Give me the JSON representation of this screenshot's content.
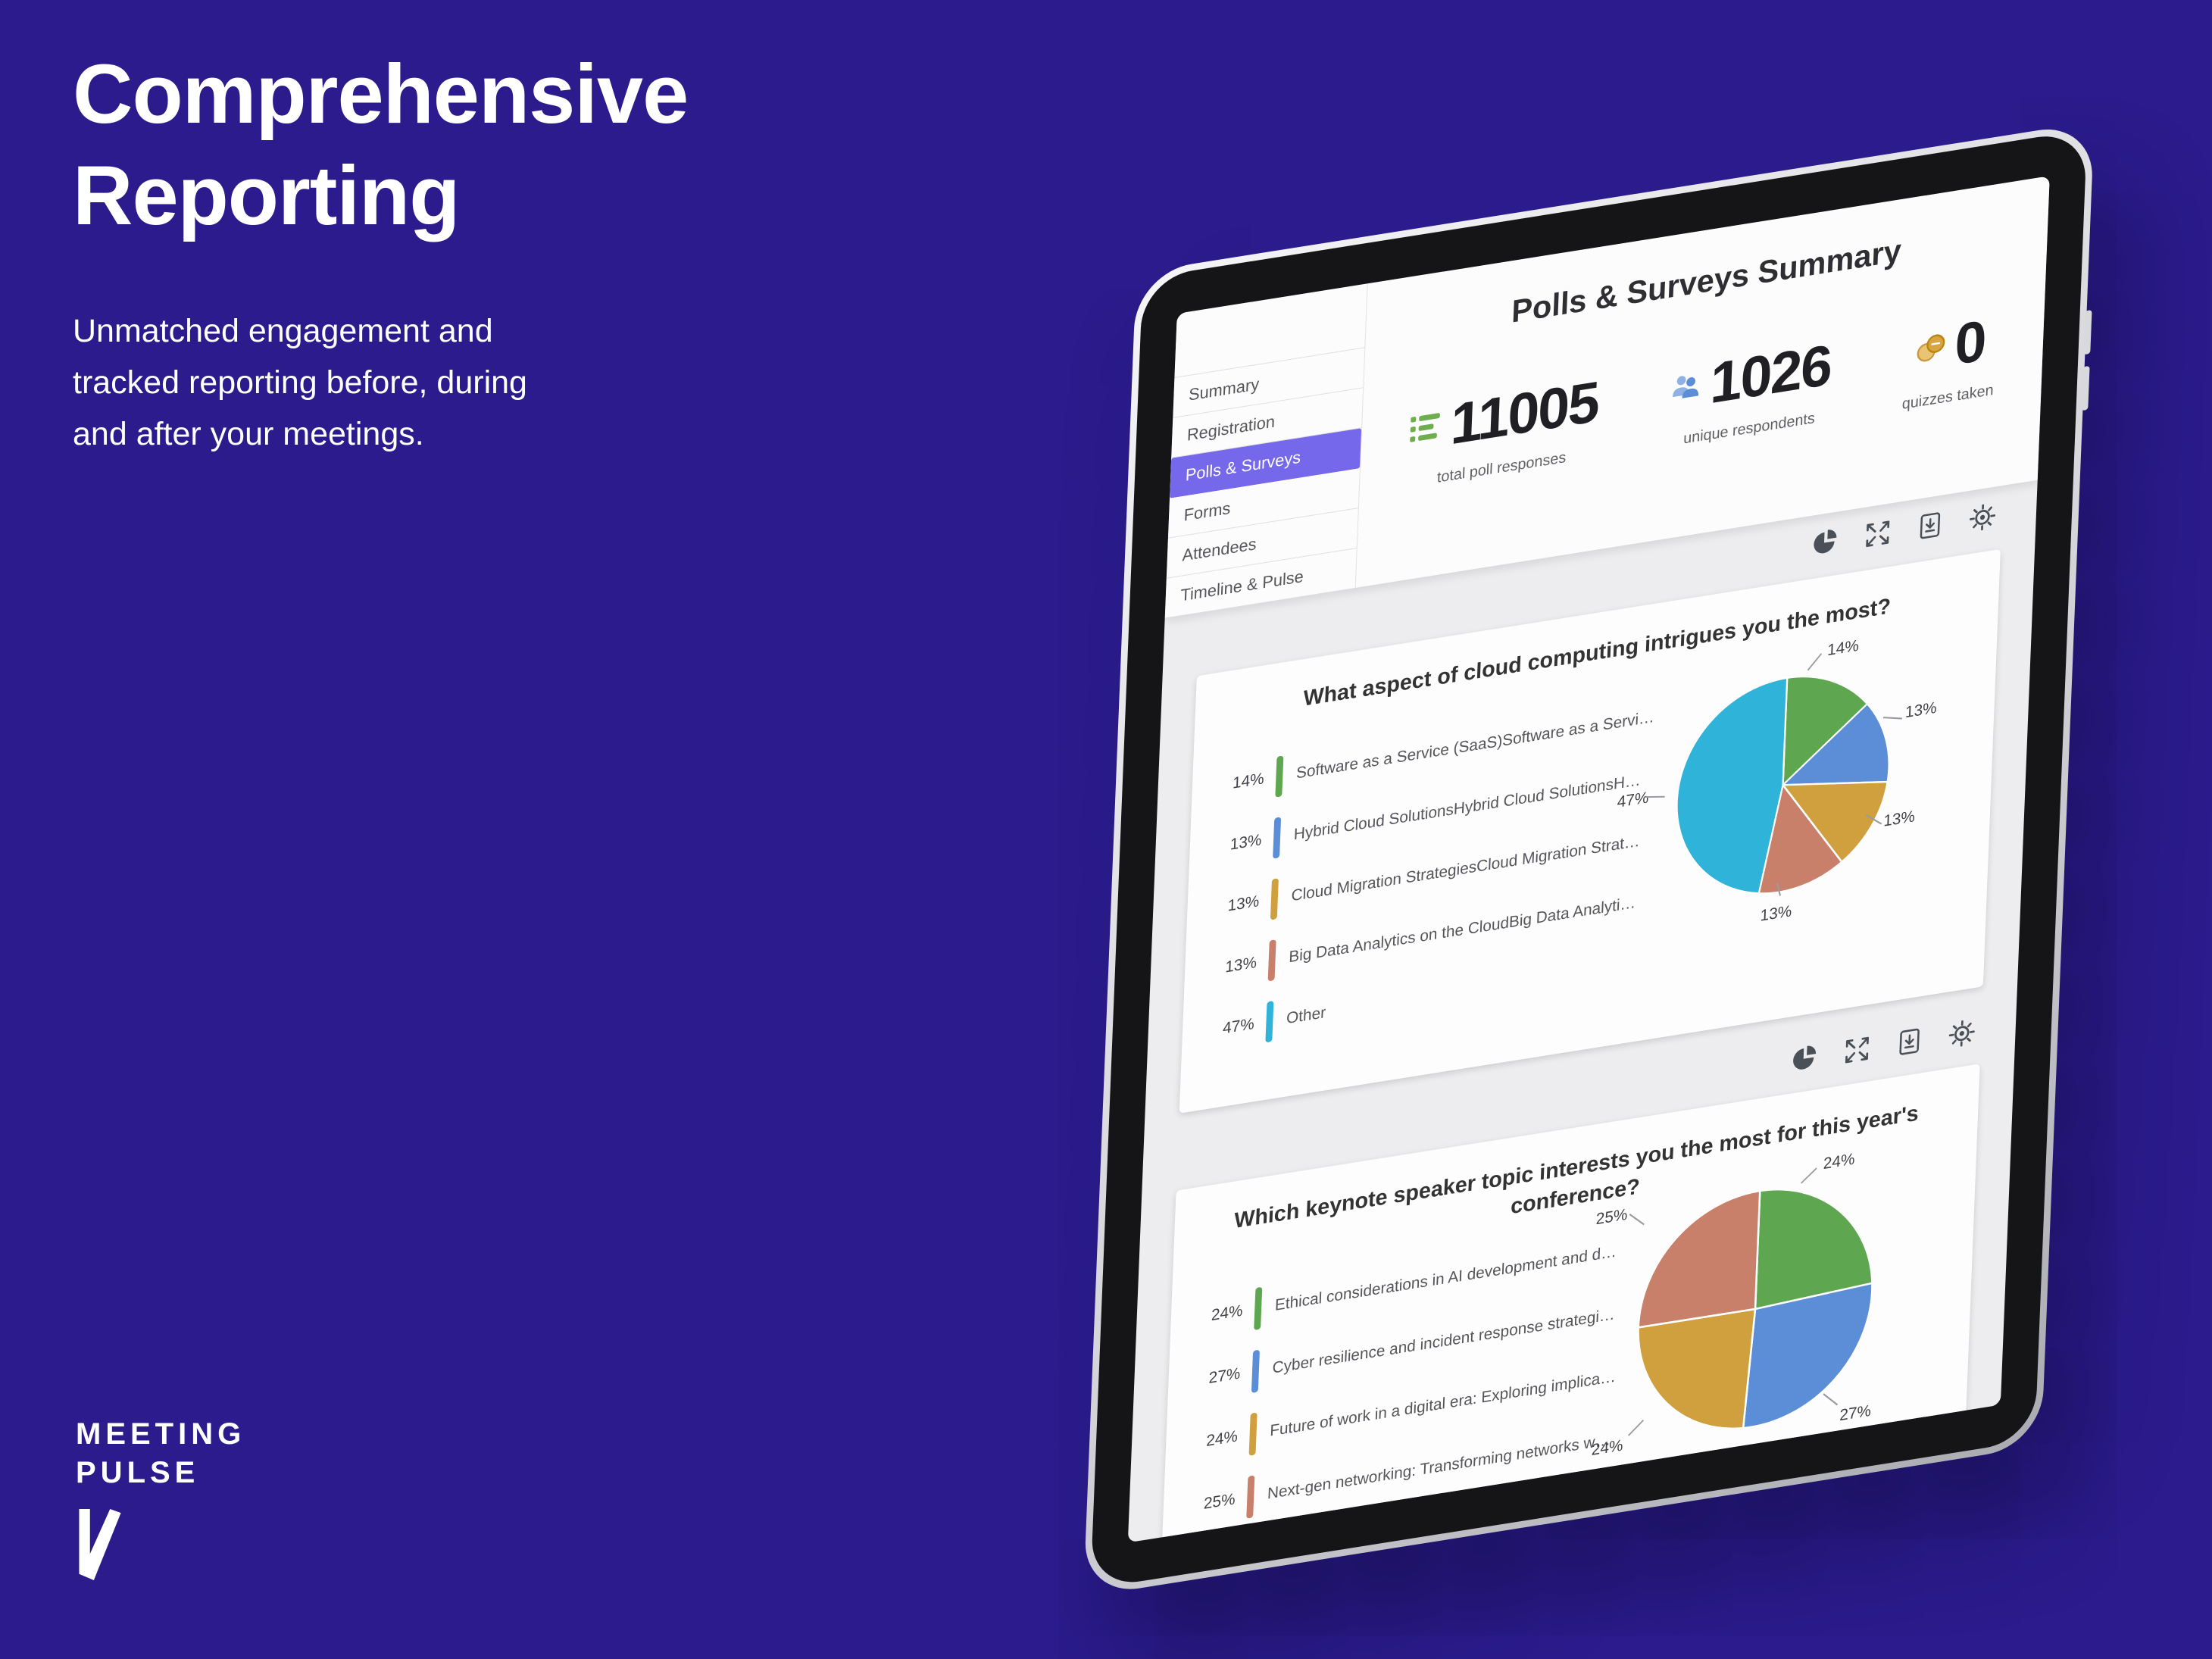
{
  "colors": {
    "background": "#2B1B8C",
    "accent_active_tab": "#7668EA",
    "slice_green": "#5EA64F",
    "slice_blue": "#5B8ED6",
    "slice_gold": "#CFA03D",
    "slice_orange": "#C8806A",
    "slice_cyan": "#2FB3D9"
  },
  "hero": {
    "title_lines": [
      "Comprehensive",
      "Reporting"
    ],
    "subtitle": "Unmatched engagement and tracked reporting before, during and after your meetings."
  },
  "logo": {
    "word1": "MEETING",
    "word2": "PULSE"
  },
  "dashboard": {
    "sidebar": [
      {
        "label": "Summary",
        "active": false
      },
      {
        "label": "Registration",
        "active": false
      },
      {
        "label": "Polls & Surveys",
        "active": true
      },
      {
        "label": "Forms",
        "active": false
      },
      {
        "label": "Attendees",
        "active": false
      },
      {
        "label": "Timeline & Pulse",
        "active": false
      }
    ],
    "summary_title": "Polls & Surveys Summary",
    "stats": [
      {
        "value": "11005",
        "label": "total poll responses",
        "icon": "poll-responses-icon",
        "color": "#6FAE4E"
      },
      {
        "value": "1026",
        "label": "unique respondents",
        "icon": "people-icon",
        "color": "#5B8ED6"
      },
      {
        "value": "0",
        "label": "quizzes taken",
        "icon": "coins-icon",
        "color": "#D9A441"
      }
    ],
    "toolbar_icons": [
      "pie-chart-icon",
      "expand-icon",
      "export-icon",
      "settings-icon"
    ]
  },
  "chart_data": [
    {
      "type": "pie",
      "title": "What aspect of cloud computing intrigues you the most?",
      "labels": [
        "Software as a Service (SaaS)Software as a Servi…",
        "Hybrid Cloud SolutionsHybrid Cloud SolutionsH…",
        "Cloud Migration StrategiesCloud Migration Strat…",
        "Big Data Analytics on the CloudBig Data Analyti…",
        "Other"
      ],
      "values": [
        14,
        13,
        13,
        13,
        47
      ],
      "pct_labels": [
        "14%",
        "13%",
        "13%",
        "13%",
        "47%"
      ],
      "colors": [
        "#5EA64F",
        "#5B8ED6",
        "#CFA03D",
        "#C8806A",
        "#2FB3D9"
      ],
      "legend_position": "left",
      "start_angle_deg": 0,
      "direction": "clockwise"
    },
    {
      "type": "pie",
      "title": "Which keynote speaker topic interests you the most for this year's conference?",
      "labels": [
        "Ethical considerations in AI development and d…",
        "Cyber resilience and incident response strategi…",
        "Future of work in a digital era: Exploring implica…",
        "Next-gen networking: Transforming networks w…"
      ],
      "values": [
        24,
        27,
        24,
        25
      ],
      "pct_labels": [
        "24%",
        "27%",
        "24%",
        "25%"
      ],
      "colors": [
        "#5EA64F",
        "#5B8ED6",
        "#CFA03D",
        "#C8806A"
      ],
      "legend_position": "left",
      "start_angle_deg": 0,
      "direction": "clockwise"
    }
  ]
}
